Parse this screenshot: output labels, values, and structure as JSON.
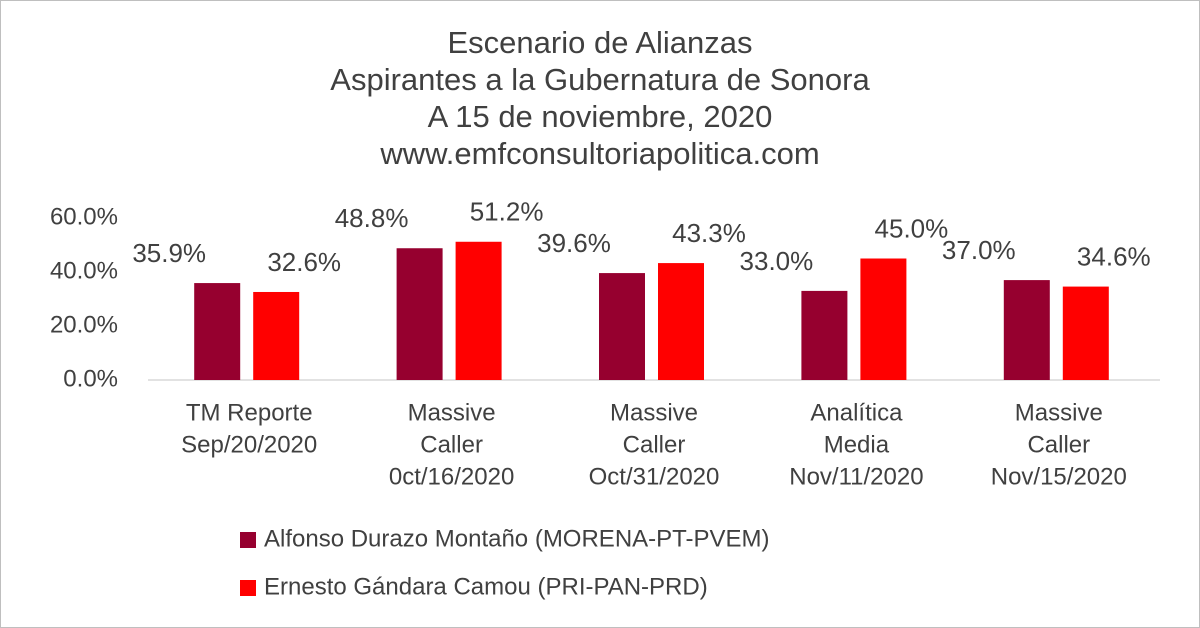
{
  "chart_data": {
    "type": "bar",
    "title": [
      "Escenario de Alianzas",
      "Aspirantes a la Gubernatura de Sonora",
      "A 15 de noviembre, 2020",
      "www.emfconsultoriapolitica.com"
    ],
    "categories": [
      [
        "TM Reporte",
        "Sep/20/2020"
      ],
      [
        "Massive",
        "Caller",
        "0ct/16/2020"
      ],
      [
        "Massive",
        "Caller",
        "Oct/31/2020"
      ],
      [
        "Analítica",
        "Media",
        "Nov/11/2020"
      ],
      [
        "Massive",
        "Caller",
        "Nov/15/2020"
      ]
    ],
    "series": [
      {
        "name": "Alfonso Durazo Montaño (MORENA-PT-PVEM)",
        "color": "#96002f",
        "values": [
          35.9,
          48.8,
          39.6,
          33.0,
          37.0
        ],
        "value_labels": [
          "35.9%",
          "48.8%",
          "39.6%",
          "33.0%",
          "37.0%"
        ]
      },
      {
        "name": "Ernesto Gándara Camou (PRI-PAN-PRD)",
        "color": "#ff0000",
        "values": [
          32.6,
          51.2,
          43.3,
          45.0,
          34.6
        ],
        "value_labels": [
          "32.6%",
          "51.2%",
          "43.3%",
          "45.0%",
          "34.6%"
        ]
      }
    ],
    "ylim": [
      0,
      60
    ],
    "yticks": [
      {
        "value": 0,
        "label": "0.0%"
      },
      {
        "value": 20,
        "label": "20.0%"
      },
      {
        "value": 40,
        "label": "40.0%"
      },
      {
        "value": 60,
        "label": "60.0%"
      }
    ],
    "grid": false
  }
}
